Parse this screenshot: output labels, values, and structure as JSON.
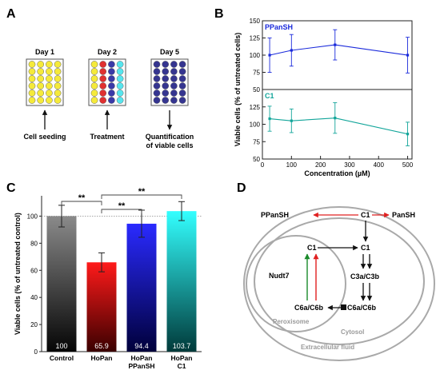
{
  "panels": {
    "a": {
      "letter": "A",
      "steps": [
        {
          "day": "Day 1",
          "caption": [
            "Cell seeding"
          ]
        },
        {
          "day": "Day 2",
          "caption": [
            "Treatment"
          ]
        },
        {
          "day": "Day 5",
          "caption": [
            "Quantification",
            "of viable cells"
          ]
        }
      ]
    },
    "b": {
      "letter": "B"
    },
    "c": {
      "letter": "C"
    },
    "d": {
      "letter": "D",
      "labels": {
        "ppansh": "PPanSH",
        "c1_top": "C1",
        "pansh": "PanSH",
        "c1_cyt": "C1",
        "c1_per": "C1",
        "nudt7": "Nudt7",
        "c3a": "C3a/C3b",
        "c6a_cyt": "C6a/C6b",
        "c6a_per": "C6a/C6b",
        "peroxisome": "Peroxisome",
        "cytosol": "Cytosol",
        "extracellular": "Extracellular fluid"
      }
    }
  },
  "colors": {
    "yellow": "#f5ea3a",
    "red": "#e03030",
    "blue_well": "#3a3aa8",
    "cyan": "#55e5ee",
    "navy": "#353590",
    "line_blue": "#1a2adb",
    "line_teal": "#12a59a",
    "bar_control": "#4a4a4a",
    "bar_hopan": "#d00000",
    "bar_ppansh": "#0000e0",
    "bar_c1": "#00e6e6",
    "arrow_red": "#e02020",
    "arrow_green": "#1a8a2a",
    "ellipse": "#a9a9a9"
  },
  "chart_data": [
    {
      "type": "line",
      "panel": "B",
      "ylabel": "Viable cells (% of untreated cells)",
      "xlabel": "Concentration (µM)",
      "xlim": [
        0,
        515
      ],
      "xticks": [
        0,
        100,
        200,
        300,
        400,
        500
      ],
      "series": [
        {
          "name": "PPanSH",
          "x": [
            25,
            100,
            250,
            500
          ],
          "y": [
            100,
            107,
            115,
            100
          ],
          "err": [
            25,
            23,
            22,
            26
          ],
          "ylim": [
            50,
            150
          ],
          "yticks": [
            50,
            75,
            100,
            125,
            150
          ]
        },
        {
          "name": "C1",
          "x": [
            25,
            100,
            250,
            500
          ],
          "y": [
            108,
            105,
            109,
            86
          ],
          "err": [
            18,
            17,
            22,
            17
          ],
          "ylim": [
            50,
            150
          ],
          "yticks": [
            50,
            75,
            100,
            125
          ]
        }
      ]
    },
    {
      "type": "bar",
      "panel": "C",
      "ylabel": "Viable cells (% of untreated control)",
      "categories": [
        [
          "Control"
        ],
        [
          "HoPan"
        ],
        [
          "HoPan",
          "PPanSH"
        ],
        [
          "HoPan",
          "C1"
        ]
      ],
      "values": [
        100,
        65.9,
        94.4,
        103.7
      ],
      "value_labels": [
        "100",
        "65.9",
        "94.4",
        "103.7"
      ],
      "errors": [
        8,
        7,
        10,
        7
      ],
      "ylim": [
        0,
        115
      ],
      "yticks": [
        0,
        20,
        40,
        60,
        80,
        100
      ],
      "reference_line": 100,
      "significance": [
        {
          "from": 0,
          "to": 1,
          "label": "**"
        },
        {
          "from": 1,
          "to": 2,
          "label": "**"
        },
        {
          "from": 1,
          "to": 3,
          "label": "**"
        }
      ]
    }
  ]
}
